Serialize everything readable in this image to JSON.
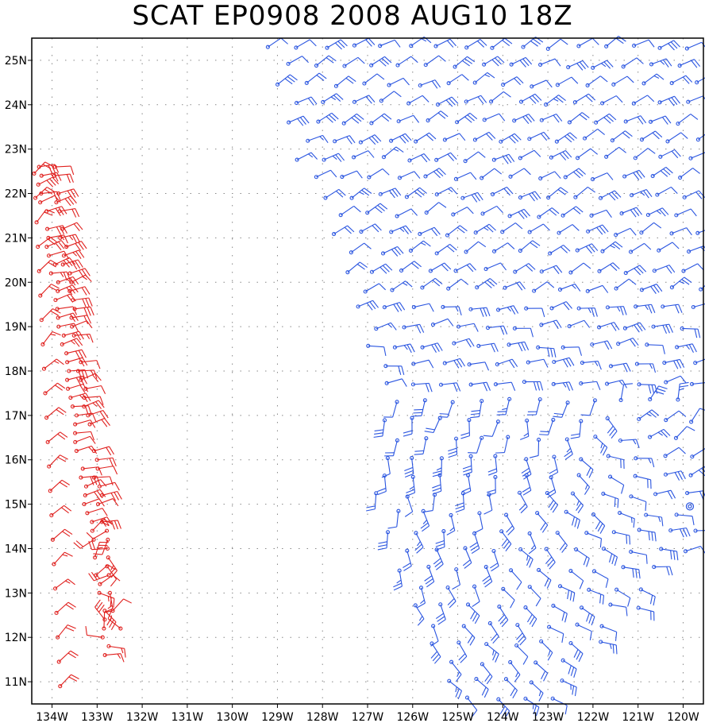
{
  "title": "SCAT EP0908 2008 AUG10 18Z",
  "map": {
    "lon_range": [
      -134.45,
      -119.55
    ],
    "lat_range": [
      10.5,
      25.5
    ],
    "lat_ticks": [
      {
        "value": 11,
        "label": "11N"
      },
      {
        "value": 12,
        "label": "12N"
      },
      {
        "value": 13,
        "label": "13N"
      },
      {
        "value": 14,
        "label": "14N"
      },
      {
        "value": 15,
        "label": "15N"
      },
      {
        "value": 16,
        "label": "16N"
      },
      {
        "value": 17,
        "label": "17N"
      },
      {
        "value": 18,
        "label": "18N"
      },
      {
        "value": 19,
        "label": "19N"
      },
      {
        "value": 20,
        "label": "20N"
      },
      {
        "value": 21,
        "label": "21N"
      },
      {
        "value": 22,
        "label": "22N"
      },
      {
        "value": 23,
        "label": "23N"
      },
      {
        "value": 24,
        "label": "24N"
      },
      {
        "value": 25,
        "label": "25N"
      }
    ],
    "lon_ticks": [
      {
        "value": -134,
        "label": "134W"
      },
      {
        "value": -133,
        "label": "133W"
      },
      {
        "value": -132,
        "label": "132W"
      },
      {
        "value": -131,
        "label": "131W"
      },
      {
        "value": -130,
        "label": "130W"
      },
      {
        "value": -129,
        "label": "129W"
      },
      {
        "value": -128,
        "label": "128W"
      },
      {
        "value": -127,
        "label": "127W"
      },
      {
        "value": -126,
        "label": "126W"
      },
      {
        "value": -125,
        "label": "125W"
      },
      {
        "value": -124,
        "label": "124W"
      },
      {
        "value": -123,
        "label": "123W"
      },
      {
        "value": -122,
        "label": "122W"
      },
      {
        "value": -121,
        "label": "121W"
      },
      {
        "value": -120,
        "label": "120W"
      }
    ],
    "center_marker": {
      "lon": -119.85,
      "lat": 14.95
    },
    "colors": {
      "east_swath": "#2a55e0",
      "west_swath": "#e0201e",
      "grid": "#888888",
      "frame": "#000000"
    }
  }
}
